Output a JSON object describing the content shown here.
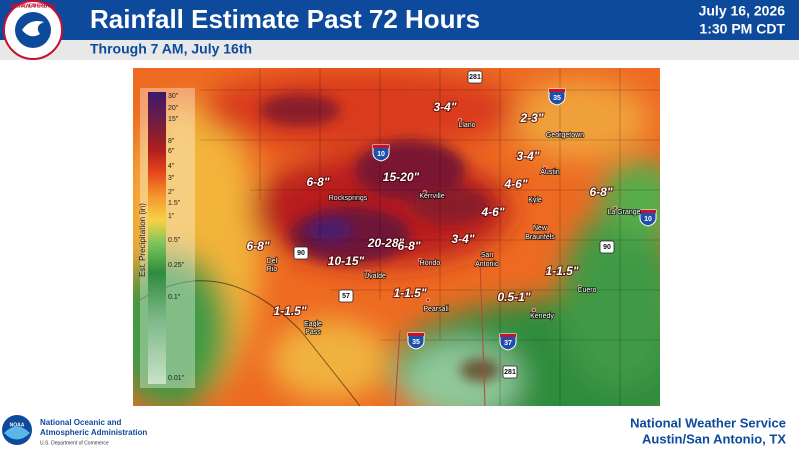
{
  "header": {
    "agency_logo": "NATIONAL WEATHER SERVICE",
    "title": "Rainfall Estimate Past 72 Hours",
    "date": "July 16, 2026",
    "time": "1:30 PM CDT",
    "subtitle": "Through 7 AM, July 16th"
  },
  "legend": {
    "title": "Est. Precipitation (in)",
    "labels": [
      "30\"",
      "20\"",
      "15\"",
      "8\"",
      "6\"",
      "4\"",
      "3\"",
      "2\"",
      "1.5\"",
      "1\"",
      "0.5\"",
      "0.25\"",
      "0.1\"",
      "0.01\""
    ]
  },
  "amounts": [
    "3-4\"",
    "2-3\"",
    "3-4\"",
    "15-20\"",
    "6-8\"",
    "4-6\"",
    "6-8\"",
    "4-6\"",
    "6-8\"",
    "20-28\"",
    "6-8\"",
    "3-4\"",
    "10-15\"",
    "1-1.5\"",
    "1-1.5\"",
    "0.5-1\"",
    "1-1.5\""
  ],
  "cities": [
    "Llano",
    "Georgetown",
    "Austin",
    "Kerrville",
    "Rocksprings",
    "Kyle",
    "La Grange",
    "New",
    "Braunfels",
    "Del",
    "Rio",
    "Hondo",
    "San",
    "Antonio",
    "Uvalde",
    "Cuero",
    "Pearsall",
    "Kenedy",
    "Eagle",
    "Pass"
  ],
  "highways": [
    "281",
    "35",
    "10",
    "10",
    "90",
    "90",
    "57",
    "35",
    "37",
    "281"
  ],
  "footer": {
    "noaa_line1": "National Oceanic and",
    "noaa_line2": "Atmospheric Administration",
    "noaa_line3": "U.S. Department of Commerce",
    "office_line1": "National Weather Service",
    "office_line2": "Austin/San Antonio, TX"
  }
}
